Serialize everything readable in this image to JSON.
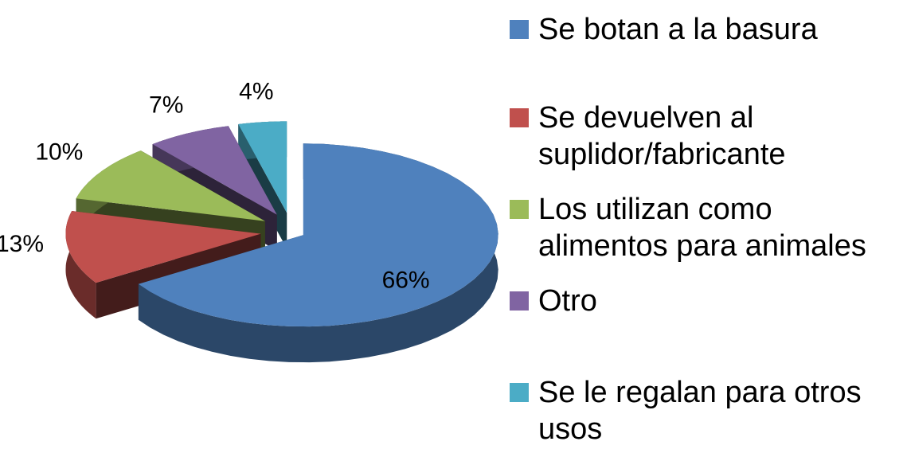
{
  "chart_data": {
    "type": "pie",
    "categories": [
      "Se botan a la basura",
      "Se devuelven al suplidor/fabricante",
      "Los utilizan como alimentos para animales",
      "Otro",
      "Se le regalan para otros usos"
    ],
    "values": [
      66,
      13,
      10,
      7,
      4
    ],
    "value_labels": [
      "66%",
      "13%",
      "10%",
      "7%",
      "4%"
    ],
    "colors": [
      "#4f81bd",
      "#c0504d",
      "#9bbb59",
      "#8064a2",
      "#4bacc6"
    ],
    "legend": "right"
  }
}
